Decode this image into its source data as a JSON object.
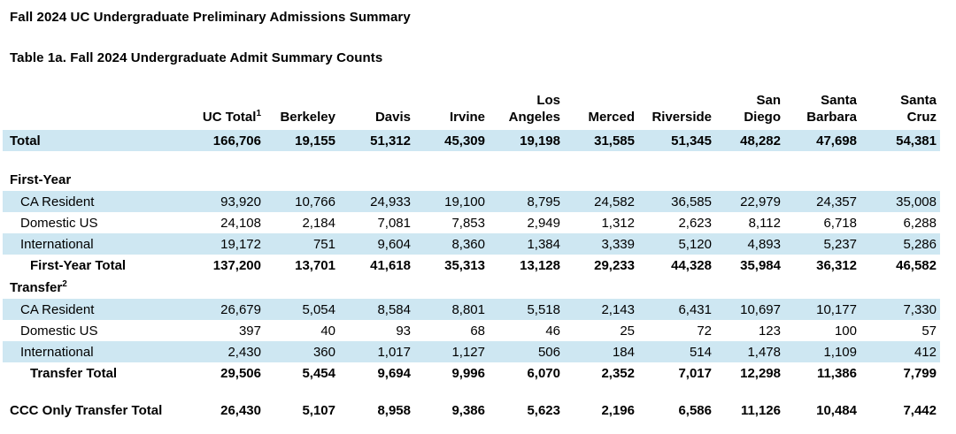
{
  "page": {
    "title": "Fall 2024 UC Undergraduate Preliminary Admissions Summary",
    "caption": "Table 1a. Fall 2024 Undergraduate Admit Summary Counts"
  },
  "colors": {
    "row_highlight": "#cee7f2",
    "text": "#000000",
    "background": "#ffffff"
  },
  "table": {
    "columns": [
      {
        "lines": [
          ""
        ]
      },
      {
        "lines": [
          "UC Total"
        ],
        "sup": "1"
      },
      {
        "lines": [
          "Berkeley"
        ]
      },
      {
        "lines": [
          "Davis"
        ]
      },
      {
        "lines": [
          "Irvine"
        ]
      },
      {
        "lines": [
          "Los",
          "Angeles"
        ]
      },
      {
        "lines": [
          "Merced"
        ]
      },
      {
        "lines": [
          "Riverside"
        ]
      },
      {
        "lines": [
          "San",
          "Diego"
        ]
      },
      {
        "lines": [
          "Santa",
          "Barbara"
        ]
      },
      {
        "lines": [
          "Santa",
          "Cruz"
        ]
      }
    ],
    "rows": [
      {
        "type": "total",
        "label": "Total",
        "indent": 0,
        "bold": true,
        "shaded": true,
        "values": [
          "166,706",
          "19,155",
          "51,312",
          "45,309",
          "19,198",
          "31,585",
          "51,345",
          "48,282",
          "47,698",
          "54,381"
        ]
      },
      {
        "type": "spacer"
      },
      {
        "type": "section",
        "label": "First-Year",
        "indent": 0,
        "bold": true,
        "shaded": false
      },
      {
        "type": "data",
        "label": "CA Resident",
        "indent": 1,
        "bold": false,
        "shaded": true,
        "values": [
          "93,920",
          "10,766",
          "24,933",
          "19,100",
          "8,795",
          "24,582",
          "36,585",
          "22,979",
          "24,357",
          "35,008"
        ]
      },
      {
        "type": "data",
        "label": "Domestic US",
        "indent": 1,
        "bold": false,
        "shaded": false,
        "values": [
          "24,108",
          "2,184",
          "7,081",
          "7,853",
          "2,949",
          "1,312",
          "2,623",
          "8,112",
          "6,718",
          "6,288"
        ]
      },
      {
        "type": "data",
        "label": "International",
        "indent": 1,
        "bold": false,
        "shaded": true,
        "values": [
          "19,172",
          "751",
          "9,604",
          "8,360",
          "1,384",
          "3,339",
          "5,120",
          "4,893",
          "5,237",
          "5,286"
        ]
      },
      {
        "type": "subtotal",
        "label": "First-Year Total",
        "indent": 2,
        "bold": true,
        "shaded": false,
        "values": [
          "137,200",
          "13,701",
          "41,618",
          "35,313",
          "13,128",
          "29,233",
          "44,328",
          "35,984",
          "36,312",
          "46,582"
        ]
      },
      {
        "type": "section",
        "label": "Transfer",
        "sup": "2",
        "indent": 0,
        "bold": true,
        "shaded": false
      },
      {
        "type": "data",
        "label": "CA Resident",
        "indent": 1,
        "bold": false,
        "shaded": true,
        "values": [
          "26,679",
          "5,054",
          "8,584",
          "8,801",
          "5,518",
          "2,143",
          "6,431",
          "10,697",
          "10,177",
          "7,330"
        ]
      },
      {
        "type": "data",
        "label": "Domestic US",
        "indent": 1,
        "bold": false,
        "shaded": false,
        "values": [
          "397",
          "40",
          "93",
          "68",
          "46",
          "25",
          "72",
          "123",
          "100",
          "57"
        ]
      },
      {
        "type": "data",
        "label": "International",
        "indent": 1,
        "bold": false,
        "shaded": true,
        "values": [
          "2,430",
          "360",
          "1,017",
          "1,127",
          "506",
          "184",
          "514",
          "1,478",
          "1,109",
          "412"
        ]
      },
      {
        "type": "subtotal",
        "label": "Transfer Total",
        "indent": 2,
        "bold": true,
        "shaded": false,
        "values": [
          "29,506",
          "5,454",
          "9,694",
          "9,996",
          "6,070",
          "2,352",
          "7,017",
          "12,298",
          "11,386",
          "7,799"
        ]
      },
      {
        "type": "spacer"
      },
      {
        "type": "grand",
        "label": "CCC Only Transfer Total",
        "indent": 0,
        "bold": true,
        "shaded": false,
        "values": [
          "26,430",
          "5,107",
          "8,958",
          "9,386",
          "5,623",
          "2,196",
          "6,586",
          "11,126",
          "10,484",
          "7,442"
        ]
      }
    ]
  }
}
